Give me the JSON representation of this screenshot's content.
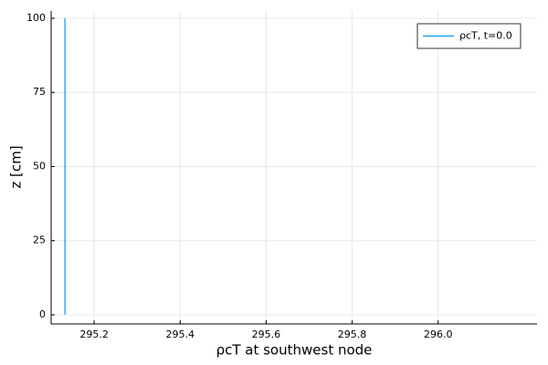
{
  "chart_data": {
    "type": "line",
    "x_label": "ρcT at southwest node",
    "y_label": "z [cm]",
    "series": [
      {
        "name": "ρcT, t=0.0",
        "color": "#009af9",
        "x": [
          295.132,
          295.132
        ],
        "values": [
          0,
          100
        ]
      }
    ],
    "xlim": [
      295.1,
      296.23
    ],
    "xticks": [
      295.2,
      295.4,
      295.6,
      295.8,
      {
        "value": 296,
        "label": "296.0"
      }
    ],
    "ylim": [
      -3.08,
      102.46
    ],
    "yticks": [
      0,
      25,
      50,
      75,
      100
    ],
    "grid": true,
    "legend": "top-right"
  }
}
